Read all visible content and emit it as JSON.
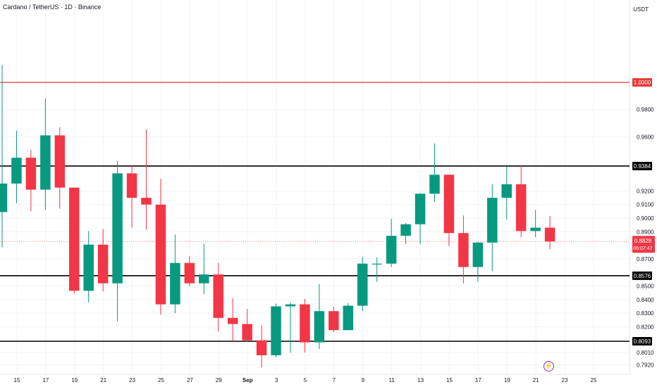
{
  "header": {
    "title": "Cardano / TetherUS · 1D · Binance",
    "currency": "USDT"
  },
  "chart_data": {
    "type": "candlestick",
    "symbol": "Cardano / TetherUS",
    "interval": "1D",
    "exchange": "Binance",
    "colors": {
      "up": "#089981",
      "down": "#f23645",
      "resistance": "#e53935",
      "level": "#000000"
    },
    "x_ticks": [
      "15",
      "17",
      "19",
      "21",
      "23",
      "25",
      "27",
      "29",
      "Sep",
      "3",
      "5",
      "7",
      "9",
      "11",
      "13",
      "15",
      "17",
      "19",
      "21",
      "23",
      "25"
    ],
    "y_ticks": [
      "0.9800",
      "0.9600",
      "0.9200",
      "0.9100",
      "0.9000",
      "0.8900",
      "0.8700",
      "0.8500",
      "0.8400",
      "0.8300",
      "0.8200",
      "0.8010",
      "0.7920"
    ],
    "horizontal_levels": [
      {
        "value": 1.0,
        "label": "1.0000",
        "color": "#e53935"
      },
      {
        "value": 0.9384,
        "label": "0.9384",
        "color": "#000000"
      },
      {
        "value": 0.8576,
        "label": "0.8576",
        "color": "#000000"
      },
      {
        "value": 0.8093,
        "label": "0.8093",
        "color": "#000000"
      }
    ],
    "last_price": {
      "value": 0.8828,
      "label": "0.8828",
      "countdown": "06:07:47"
    },
    "candles": [
      {
        "o": 0.9045,
        "h": 1.013,
        "l": 0.8785,
        "c": 0.9255
      },
      {
        "o": 0.9255,
        "h": 0.9645,
        "l": 0.911,
        "c": 0.9445
      },
      {
        "o": 0.9445,
        "h": 0.9505,
        "l": 0.905,
        "c": 0.921
      },
      {
        "o": 0.921,
        "h": 0.988,
        "l": 0.906,
        "c": 0.961
      },
      {
        "o": 0.961,
        "h": 0.967,
        "l": 0.907,
        "c": 0.9225
      },
      {
        "o": 0.9225,
        "h": 0.9225,
        "l": 0.8445,
        "c": 0.8465
      },
      {
        "o": 0.8465,
        "h": 0.8905,
        "l": 0.838,
        "c": 0.8805
      },
      {
        "o": 0.8805,
        "h": 0.892,
        "l": 0.846,
        "c": 0.852
      },
      {
        "o": 0.852,
        "h": 0.942,
        "l": 0.824,
        "c": 0.933
      },
      {
        "o": 0.933,
        "h": 0.9385,
        "l": 0.893,
        "c": 0.915
      },
      {
        "o": 0.915,
        "h": 0.9655,
        "l": 0.8915,
        "c": 0.91
      },
      {
        "o": 0.91,
        "h": 0.929,
        "l": 0.829,
        "c": 0.8365
      },
      {
        "o": 0.8365,
        "h": 0.888,
        "l": 0.83,
        "c": 0.867
      },
      {
        "o": 0.867,
        "h": 0.872,
        "l": 0.85,
        "c": 0.852
      },
      {
        "o": 0.852,
        "h": 0.881,
        "l": 0.844,
        "c": 0.8585
      },
      {
        "o": 0.8585,
        "h": 0.867,
        "l": 0.8165,
        "c": 0.8265
      },
      {
        "o": 0.8265,
        "h": 0.841,
        "l": 0.8095,
        "c": 0.822
      },
      {
        "o": 0.822,
        "h": 0.833,
        "l": 0.809,
        "c": 0.81
      },
      {
        "o": 0.81,
        "h": 0.821,
        "l": 0.79,
        "c": 0.799
      },
      {
        "o": 0.799,
        "h": 0.837,
        "l": 0.7975,
        "c": 0.835
      },
      {
        "o": 0.835,
        "h": 0.838,
        "l": 0.801,
        "c": 0.8365
      },
      {
        "o": 0.8365,
        "h": 0.8405,
        "l": 0.801,
        "c": 0.8085
      },
      {
        "o": 0.8085,
        "h": 0.8515,
        "l": 0.8035,
        "c": 0.8315
      },
      {
        "o": 0.8315,
        "h": 0.8345,
        "l": 0.816,
        "c": 0.8175
      },
      {
        "o": 0.8175,
        "h": 0.8375,
        "l": 0.8175,
        "c": 0.8355
      },
      {
        "o": 0.8355,
        "h": 0.8715,
        "l": 0.8315,
        "c": 0.8665
      },
      {
        "o": 0.8665,
        "h": 0.871,
        "l": 0.853,
        "c": 0.8665
      },
      {
        "o": 0.8665,
        "h": 0.8995,
        "l": 0.864,
        "c": 0.887
      },
      {
        "o": 0.887,
        "h": 0.8965,
        "l": 0.881,
        "c": 0.8955
      },
      {
        "o": 0.8955,
        "h": 0.9185,
        "l": 0.881,
        "c": 0.918
      },
      {
        "o": 0.918,
        "h": 0.955,
        "l": 0.912,
        "c": 0.932
      },
      {
        "o": 0.932,
        "h": 0.932,
        "l": 0.8795,
        "c": 0.889
      },
      {
        "o": 0.889,
        "h": 0.902,
        "l": 0.852,
        "c": 0.864
      },
      {
        "o": 0.864,
        "h": 0.8825,
        "l": 0.853,
        "c": 0.882
      },
      {
        "o": 0.882,
        "h": 0.925,
        "l": 0.861,
        "c": 0.915
      },
      {
        "o": 0.915,
        "h": 0.938,
        "l": 0.899,
        "c": 0.925
      },
      {
        "o": 0.925,
        "h": 0.9385,
        "l": 0.886,
        "c": 0.8905
      },
      {
        "o": 0.8905,
        "h": 0.906,
        "l": 0.886,
        "c": 0.893
      },
      {
        "o": 0.893,
        "h": 0.9015,
        "l": 0.877,
        "c": 0.8828
      }
    ]
  }
}
